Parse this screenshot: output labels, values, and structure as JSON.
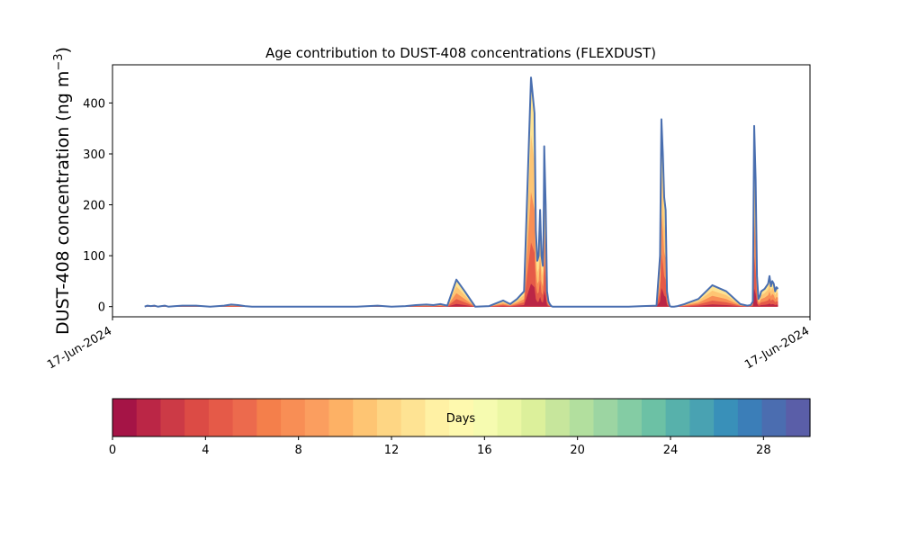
{
  "chart_data": [
    {
      "type": "area",
      "title": "Age contribution to DUST-408 concentrations (FLEXDUST)",
      "ylabel": "DUST-408 concentration (ng m⁻³)",
      "ylabel_main": "DUST-408 concentration (ng m",
      "ylabel_sup": "−3",
      "ylabel_close": ")",
      "xlabel": "",
      "x_tick_labels": [
        "17-Jun-2024",
        "17-Jun-2024"
      ],
      "y_ticks": [
        0,
        100,
        200,
        300,
        400
      ],
      "ylim": [
        -20,
        475
      ],
      "xlim": [
        0,
        1
      ],
      "grid": false,
      "stacked": true,
      "total_series": {
        "name": "",
        "color": "#4a6fb0",
        "x": [
          0.046,
          0.05,
          0.055,
          0.06,
          0.065,
          0.07,
          0.075,
          0.08,
          0.09,
          0.1,
          0.12,
          0.14,
          0.16,
          0.17,
          0.18,
          0.19,
          0.2,
          0.22,
          0.25,
          0.3,
          0.35,
          0.38,
          0.4,
          0.42,
          0.435,
          0.45,
          0.46,
          0.47,
          0.48,
          0.493,
          0.505,
          0.52,
          0.54,
          0.56,
          0.57,
          0.58,
          0.59,
          0.6,
          0.605,
          0.607,
          0.609,
          0.611,
          0.613,
          0.615,
          0.617,
          0.618,
          0.619,
          0.621,
          0.623,
          0.625,
          0.627,
          0.629,
          0.631,
          0.633,
          0.635,
          0.64,
          0.66,
          0.7,
          0.74,
          0.76,
          0.78,
          0.785,
          0.787,
          0.789,
          0.791,
          0.793,
          0.795,
          0.797,
          0.799,
          0.801,
          0.805,
          0.81,
          0.82,
          0.84,
          0.86,
          0.88,
          0.9,
          0.91,
          0.915,
          0.918,
          0.92,
          0.922,
          0.924,
          0.926,
          0.928,
          0.93,
          0.935,
          0.94,
          0.942,
          0.944,
          0.946,
          0.948,
          0.95,
          0.952,
          0.954
        ],
        "values": [
          0,
          2,
          1,
          2,
          0,
          1,
          2,
          0,
          1,
          2,
          2,
          0,
          2,
          4,
          3,
          1,
          0,
          0,
          0,
          0,
          0,
          2,
          0,
          1,
          3,
          4,
          3,
          5,
          2,
          53,
          30,
          0,
          1,
          12,
          5,
          15,
          30,
          450,
          380,
          150,
          90,
          100,
          190,
          100,
          80,
          150,
          315,
          200,
          30,
          10,
          5,
          1,
          0,
          0,
          0,
          0,
          0,
          0,
          0,
          1,
          2,
          100,
          368,
          300,
          215,
          190,
          30,
          10,
          1,
          0,
          0,
          1,
          5,
          15,
          42,
          30,
          5,
          2,
          3,
          10,
          355,
          250,
          60,
          15,
          20,
          30,
          35,
          45,
          60,
          40,
          50,
          45,
          30,
          38,
          35
        ]
      }
    },
    {
      "type": "heatmap",
      "title": "",
      "label": "Days",
      "ticks": [
        0,
        4,
        8,
        12,
        16,
        20,
        24,
        28
      ],
      "range": [
        0,
        30
      ],
      "colors": [
        "#a51446",
        "#bb2646",
        "#cc3a46",
        "#dc4b45",
        "#e55a48",
        "#ec6a4d",
        "#f47f4b",
        "#f88e55",
        "#fb9e5f",
        "#fdb165",
        "#fec573",
        "#fed684",
        "#fee393",
        "#fff1a4",
        "#fef9ae",
        "#f6fbb0",
        "#ebf7a4",
        "#dcf09b",
        "#c7e69c",
        "#b2df9e",
        "#9cd5a2",
        "#84cca4",
        "#6cc1a5",
        "#57b1ab",
        "#49a2b2",
        "#3990b9",
        "#3b7eb8",
        "#4b6db0",
        "#5a5ea8"
      ]
    }
  ]
}
